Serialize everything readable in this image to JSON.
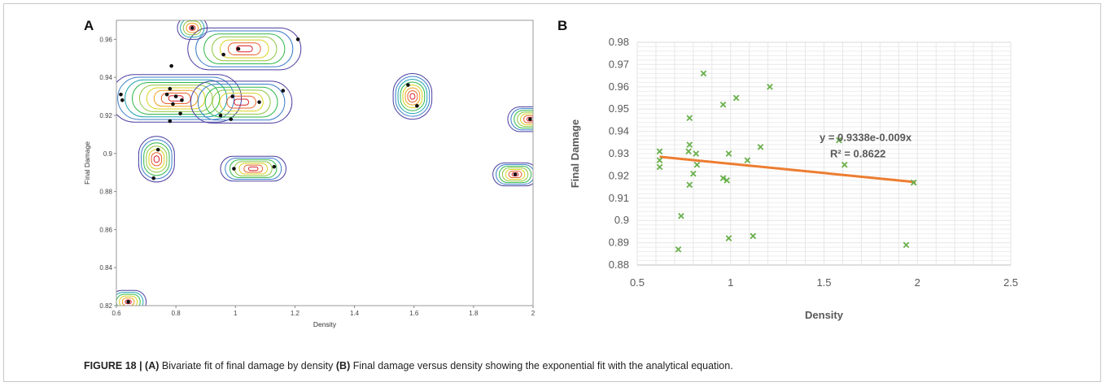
{
  "panel_a_letter": "A",
  "panel_b_letter": "B",
  "caption": {
    "label": "FIGURE 18 | ",
    "a_tag": "(A)",
    "a_text": " Bivariate fit of final damage by density ",
    "b_tag": "(B)",
    "b_text": " Final damage versus density showing the exponential fit with the analytical equation."
  },
  "chart_data": [
    {
      "type": "scatter",
      "subtype": "bivariate density contour",
      "xlabel": "Density",
      "ylabel": "Final Damage",
      "xlim": [
        0.6,
        2.0
      ],
      "ylim": [
        0.82,
        0.97
      ],
      "x_ticks": [
        "0.6",
        "0.8",
        "1",
        "1.2",
        "1.4",
        "1.6",
        "1.8",
        "2"
      ],
      "y_ticks": [
        "0.82",
        "0.84",
        "0.86",
        "0.88",
        "0.9",
        "0.92",
        "0.94",
        "0.96"
      ],
      "grid": false,
      "contour_colors": [
        "#4a3ea0",
        "#3a7dc8",
        "#21a5b0",
        "#2fb84a",
        "#8dc63f",
        "#d8d220",
        "#f0a020",
        "#e8602a",
        "#d8202a"
      ],
      "points": [
        {
          "x": 0.615,
          "y": 0.931
        },
        {
          "x": 0.62,
          "y": 0.928
        },
        {
          "x": 0.725,
          "y": 0.887
        },
        {
          "x": 0.74,
          "y": 0.902
        },
        {
          "x": 0.785,
          "y": 0.946
        },
        {
          "x": 0.78,
          "y": 0.934
        },
        {
          "x": 0.77,
          "y": 0.931
        },
        {
          "x": 0.8,
          "y": 0.93
        },
        {
          "x": 0.82,
          "y": 0.928
        },
        {
          "x": 0.79,
          "y": 0.926
        },
        {
          "x": 0.815,
          "y": 0.921
        },
        {
          "x": 0.78,
          "y": 0.917
        },
        {
          "x": 0.855,
          "y": 0.966
        },
        {
          "x": 0.96,
          "y": 0.952
        },
        {
          "x": 1.01,
          "y": 0.955
        },
        {
          "x": 1.21,
          "y": 0.96
        },
        {
          "x": 0.95,
          "y": 0.92
        },
        {
          "x": 0.985,
          "y": 0.918
        },
        {
          "x": 0.99,
          "y": 0.93
        },
        {
          "x": 1.08,
          "y": 0.927
        },
        {
          "x": 1.16,
          "y": 0.933
        },
        {
          "x": 0.995,
          "y": 0.892
        },
        {
          "x": 1.13,
          "y": 0.893
        },
        {
          "x": 1.58,
          "y": 0.936
        },
        {
          "x": 1.61,
          "y": 0.925
        },
        {
          "x": 1.94,
          "y": 0.889
        },
        {
          "x": 1.99,
          "y": 0.918
        },
        {
          "x": 0.64,
          "y": 0.822
        }
      ]
    },
    {
      "type": "scatter",
      "xlabel": "Density",
      "ylabel": "Final Damage",
      "xlim": [
        0.5,
        2.5
      ],
      "ylim": [
        0.88,
        0.98
      ],
      "x_ticks": [
        "0.5",
        "1",
        "1.5",
        "2",
        "2.5"
      ],
      "y_ticks": [
        "0.88",
        "0.89",
        "0.9",
        "0.91",
        "0.92",
        "0.93",
        "0.94",
        "0.95",
        "0.96",
        "0.97",
        "0.98"
      ],
      "grid": true,
      "marker_color": "#6ab04c",
      "trendline_color": "#ed7d31",
      "trendline": {
        "type": "exponential",
        "a": 0.9338,
        "b": -0.009,
        "x_range": [
          0.62,
          1.99
        ]
      },
      "equation_text": "y = 0.9338e-0.009x",
      "r2_text": "R² = 0.8622",
      "points": [
        {
          "x": 0.62,
          "y": 0.931
        },
        {
          "x": 0.62,
          "y": 0.927
        },
        {
          "x": 0.62,
          "y": 0.924
        },
        {
          "x": 0.72,
          "y": 0.887
        },
        {
          "x": 0.735,
          "y": 0.902
        },
        {
          "x": 0.78,
          "y": 0.946
        },
        {
          "x": 0.78,
          "y": 0.934
        },
        {
          "x": 0.775,
          "y": 0.931
        },
        {
          "x": 0.78,
          "y": 0.916
        },
        {
          "x": 0.8,
          "y": 0.921
        },
        {
          "x": 0.815,
          "y": 0.93
        },
        {
          "x": 0.82,
          "y": 0.925
        },
        {
          "x": 0.855,
          "y": 0.966
        },
        {
          "x": 0.96,
          "y": 0.952
        },
        {
          "x": 0.96,
          "y": 0.919
        },
        {
          "x": 0.98,
          "y": 0.918
        },
        {
          "x": 0.99,
          "y": 0.93
        },
        {
          "x": 0.99,
          "y": 0.892
        },
        {
          "x": 1.03,
          "y": 0.955
        },
        {
          "x": 1.09,
          "y": 0.927
        },
        {
          "x": 1.12,
          "y": 0.893
        },
        {
          "x": 1.16,
          "y": 0.933
        },
        {
          "x": 1.21,
          "y": 0.96
        },
        {
          "x": 1.58,
          "y": 0.936
        },
        {
          "x": 1.61,
          "y": 0.925
        },
        {
          "x": 1.94,
          "y": 0.889
        },
        {
          "x": 1.98,
          "y": 0.917
        }
      ]
    }
  ]
}
